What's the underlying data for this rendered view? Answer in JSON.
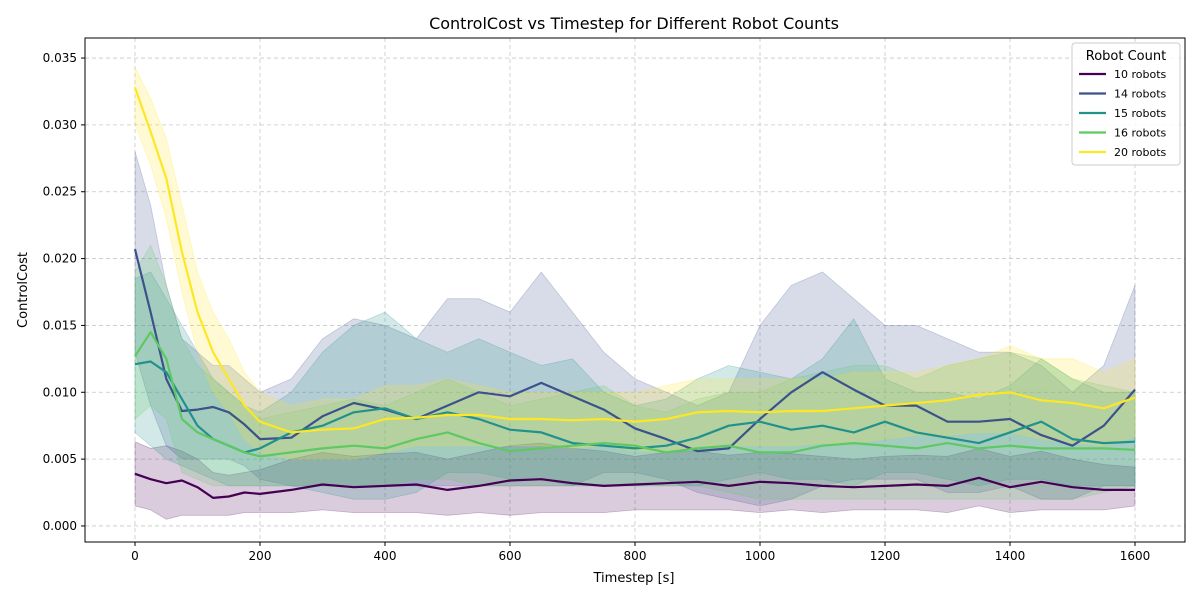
{
  "chart_data": {
    "type": "line",
    "title": "ControlCost vs Timestep for Different Robot Counts",
    "xlabel": "Timestep [s]",
    "ylabel": "ControlCost",
    "xlim": [
      -80,
      1680
    ],
    "ylim": [
      -0.0012,
      0.0365
    ],
    "xticks": [
      0,
      200,
      400,
      600,
      800,
      1000,
      1200,
      1400,
      1600
    ],
    "yticks": [
      0.0,
      0.005,
      0.01,
      0.015,
      0.02,
      0.025,
      0.03,
      0.035
    ],
    "ytick_labels": [
      "0.000",
      "0.005",
      "0.010",
      "0.015",
      "0.020",
      "0.025",
      "0.030",
      "0.035"
    ],
    "grid": true,
    "shaded_band": "mean ± std",
    "legend": {
      "title": "Robot Count",
      "position": "top-right"
    },
    "x": [
      0,
      25,
      50,
      75,
      100,
      125,
      150,
      175,
      200,
      250,
      300,
      350,
      400,
      450,
      500,
      550,
      600,
      650,
      700,
      750,
      800,
      850,
      900,
      950,
      1000,
      1050,
      1100,
      1150,
      1200,
      1250,
      1300,
      1350,
      1400,
      1450,
      1500,
      1550,
      1600
    ],
    "series": [
      {
        "name": "10 robots",
        "color": "#440154",
        "mean": [
          0.0039,
          0.0035,
          0.0032,
          0.0034,
          0.0029,
          0.0021,
          0.0022,
          0.0025,
          0.0024,
          0.0027,
          0.0031,
          0.0029,
          0.003,
          0.0031,
          0.0027,
          0.003,
          0.0034,
          0.0035,
          0.0032,
          0.003,
          0.0031,
          0.0032,
          0.0033,
          0.003,
          0.0033,
          0.0032,
          0.003,
          0.0029,
          0.003,
          0.0031,
          0.003,
          0.0036,
          0.0029,
          0.0033,
          0.0029,
          0.0027,
          0.0027
        ],
        "upper": [
          0.0063,
          0.0058,
          0.006,
          0.0056,
          0.005,
          0.004,
          0.0038,
          0.004,
          0.0042,
          0.005,
          0.0055,
          0.0052,
          0.0054,
          0.0055,
          0.005,
          0.0055,
          0.006,
          0.0062,
          0.0058,
          0.0056,
          0.0052,
          0.0055,
          0.0056,
          0.0053,
          0.0055,
          0.0054,
          0.0052,
          0.005,
          0.0052,
          0.0053,
          0.0052,
          0.0058,
          0.0052,
          0.0056,
          0.005,
          0.0046,
          0.0044
        ],
        "lower": [
          0.0015,
          0.0012,
          0.0005,
          0.0008,
          0.0008,
          0.0008,
          0.0008,
          0.001,
          0.001,
          0.001,
          0.0012,
          0.001,
          0.001,
          0.001,
          0.0008,
          0.001,
          0.0008,
          0.001,
          0.001,
          0.001,
          0.0012,
          0.0012,
          0.0012,
          0.0012,
          0.001,
          0.0012,
          0.001,
          0.0012,
          0.0012,
          0.0012,
          0.001,
          0.0015,
          0.001,
          0.0012,
          0.0012,
          0.0012,
          0.0015
        ]
      },
      {
        "name": "14 robots",
        "color": "#3b528b",
        "mean": [
          0.0207,
          0.016,
          0.011,
          0.0086,
          0.0087,
          0.0089,
          0.0085,
          0.0076,
          0.0065,
          0.0066,
          0.0082,
          0.0092,
          0.0087,
          0.008,
          0.009,
          0.01,
          0.0097,
          0.0107,
          0.0097,
          0.0087,
          0.0073,
          0.0065,
          0.0056,
          0.0058,
          0.008,
          0.01,
          0.0115,
          0.0102,
          0.009,
          0.009,
          0.0078,
          0.0078,
          0.008,
          0.0068,
          0.006,
          0.0075,
          0.0102
        ],
        "upper": [
          0.028,
          0.024,
          0.018,
          0.014,
          0.013,
          0.012,
          0.012,
          0.011,
          0.01,
          0.011,
          0.014,
          0.0155,
          0.015,
          0.014,
          0.017,
          0.017,
          0.016,
          0.019,
          0.016,
          0.013,
          0.011,
          0.01,
          0.009,
          0.01,
          0.015,
          0.018,
          0.019,
          0.017,
          0.015,
          0.015,
          0.014,
          0.013,
          0.013,
          0.012,
          0.01,
          0.012,
          0.018
        ],
        "lower": [
          0.013,
          0.009,
          0.006,
          0.005,
          0.005,
          0.005,
          0.005,
          0.0045,
          0.0035,
          0.003,
          0.003,
          0.003,
          0.003,
          0.003,
          0.003,
          0.003,
          0.003,
          0.003,
          0.003,
          0.004,
          0.004,
          0.0035,
          0.0025,
          0.002,
          0.0015,
          0.002,
          0.003,
          0.0035,
          0.0035,
          0.0035,
          0.0025,
          0.0025,
          0.003,
          0.002,
          0.002,
          0.003,
          0.003
        ]
      },
      {
        "name": "15 robots",
        "color": "#21918c",
        "mean": [
          0.0121,
          0.0123,
          0.0115,
          0.0095,
          0.0075,
          0.0065,
          0.006,
          0.0055,
          0.0058,
          0.007,
          0.0075,
          0.0085,
          0.0088,
          0.008,
          0.0085,
          0.008,
          0.0072,
          0.007,
          0.0062,
          0.006,
          0.0058,
          0.006,
          0.0066,
          0.0075,
          0.0078,
          0.0072,
          0.0075,
          0.007,
          0.0078,
          0.007,
          0.0066,
          0.0062,
          0.007,
          0.0078,
          0.0065,
          0.0062,
          0.0063
        ],
        "upper": [
          0.0185,
          0.019,
          0.017,
          0.015,
          0.013,
          0.011,
          0.01,
          0.009,
          0.0085,
          0.01,
          0.013,
          0.015,
          0.016,
          0.014,
          0.013,
          0.014,
          0.013,
          0.012,
          0.0125,
          0.01,
          0.009,
          0.0095,
          0.011,
          0.012,
          0.0115,
          0.011,
          0.0125,
          0.0155,
          0.011,
          0.01,
          0.01,
          0.0095,
          0.0105,
          0.0125,
          0.011,
          0.01,
          0.01
        ],
        "lower": [
          0.007,
          0.006,
          0.005,
          0.0045,
          0.004,
          0.0035,
          0.003,
          0.003,
          0.003,
          0.003,
          0.0025,
          0.002,
          0.002,
          0.0025,
          0.004,
          0.004,
          0.0035,
          0.0035,
          0.003,
          0.003,
          0.003,
          0.003,
          0.003,
          0.0035,
          0.004,
          0.0035,
          0.0035,
          0.003,
          0.004,
          0.004,
          0.0035,
          0.003,
          0.0035,
          0.0035,
          0.003,
          0.003,
          0.003
        ]
      },
      {
        "name": "16 robots",
        "color": "#5ec962",
        "mean": [
          0.0127,
          0.0145,
          0.0125,
          0.008,
          0.007,
          0.0065,
          0.006,
          0.0055,
          0.0052,
          0.0055,
          0.0058,
          0.006,
          0.0058,
          0.0065,
          0.007,
          0.0062,
          0.0056,
          0.0058,
          0.006,
          0.0062,
          0.006,
          0.0055,
          0.0058,
          0.006,
          0.0055,
          0.0055,
          0.006,
          0.0062,
          0.006,
          0.0058,
          0.0062,
          0.0058,
          0.006,
          0.0058,
          0.0058,
          0.0058,
          0.0057
        ],
        "upper": [
          0.019,
          0.021,
          0.018,
          0.014,
          0.012,
          0.011,
          0.01,
          0.009,
          0.008,
          0.0085,
          0.009,
          0.0095,
          0.009,
          0.01,
          0.011,
          0.01,
          0.009,
          0.0095,
          0.01,
          0.0105,
          0.009,
          0.0085,
          0.0095,
          0.01,
          0.01,
          0.011,
          0.0115,
          0.012,
          0.012,
          0.011,
          0.012,
          0.0125,
          0.013,
          0.0125,
          0.011,
          0.0105,
          0.01
        ],
        "lower": [
          0.008,
          0.009,
          0.008,
          0.004,
          0.0035,
          0.003,
          0.003,
          0.003,
          0.003,
          0.003,
          0.003,
          0.003,
          0.003,
          0.0035,
          0.0035,
          0.003,
          0.003,
          0.003,
          0.003,
          0.003,
          0.003,
          0.003,
          0.003,
          0.0025,
          0.002,
          0.002,
          0.002,
          0.002,
          0.002,
          0.002,
          0.002,
          0.002,
          0.002,
          0.002,
          0.002,
          0.0025,
          0.003
        ]
      },
      {
        "name": "20 robots",
        "color": "#fde725",
        "mean": [
          0.0328,
          0.0295,
          0.026,
          0.0205,
          0.016,
          0.013,
          0.011,
          0.009,
          0.0078,
          0.007,
          0.0072,
          0.0073,
          0.008,
          0.0081,
          0.0083,
          0.0083,
          0.008,
          0.008,
          0.0079,
          0.008,
          0.0078,
          0.008,
          0.0085,
          0.0086,
          0.0085,
          0.0086,
          0.0086,
          0.0088,
          0.009,
          0.0092,
          0.0094,
          0.0098,
          0.01,
          0.0094,
          0.0092,
          0.0088,
          0.0096
        ],
        "upper": [
          0.0343,
          0.032,
          0.029,
          0.024,
          0.019,
          0.016,
          0.014,
          0.0115,
          0.01,
          0.009,
          0.0095,
          0.0095,
          0.0105,
          0.0105,
          0.011,
          0.0105,
          0.01,
          0.01,
          0.01,
          0.01,
          0.01,
          0.0105,
          0.011,
          0.011,
          0.011,
          0.011,
          0.011,
          0.0115,
          0.0115,
          0.0115,
          0.012,
          0.0125,
          0.0135,
          0.0125,
          0.0125,
          0.0115,
          0.0125
        ],
        "lower": [
          0.03,
          0.027,
          0.023,
          0.0175,
          0.013,
          0.01,
          0.0085,
          0.0065,
          0.0055,
          0.005,
          0.005,
          0.005,
          0.0055,
          0.006,
          0.006,
          0.006,
          0.006,
          0.006,
          0.0058,
          0.006,
          0.0056,
          0.0055,
          0.006,
          0.006,
          0.006,
          0.006,
          0.0062,
          0.0062,
          0.0065,
          0.0068,
          0.0068,
          0.007,
          0.007,
          0.0065,
          0.0062,
          0.006,
          0.0067
        ]
      }
    ]
  }
}
